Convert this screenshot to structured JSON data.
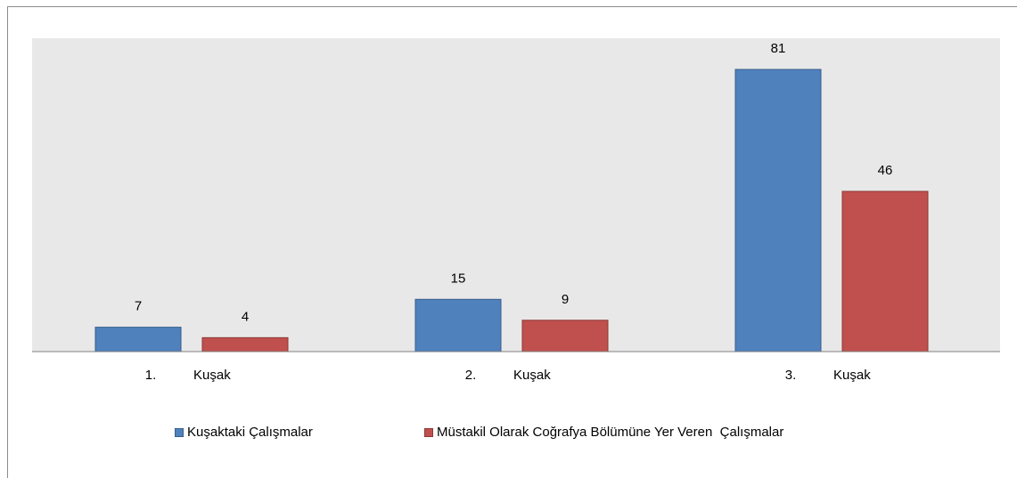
{
  "chart_data": {
    "type": "bar",
    "categories": [
      {
        "num": "1.",
        "word": "Kuşak"
      },
      {
        "num": "2.",
        "word": "Kuşak"
      },
      {
        "num": "3.",
        "word": "Kuşak"
      }
    ],
    "series": [
      {
        "name": "Kuşaktaki Çalışmalar",
        "color": "#4f81bd",
        "border": "#385d8a",
        "values": [
          7,
          15,
          81
        ]
      },
      {
        "name": "Müstakil Olarak Coğrafya Bölümüne Yer Veren  Çalışmalar",
        "color": "#c0504d",
        "border": "#8c3836",
        "values": [
          4,
          9,
          46
        ]
      }
    ],
    "ylim": [
      0,
      81
    ],
    "grid": false,
    "plot_background": "#e8e8e8",
    "legend_position": "bottom"
  }
}
